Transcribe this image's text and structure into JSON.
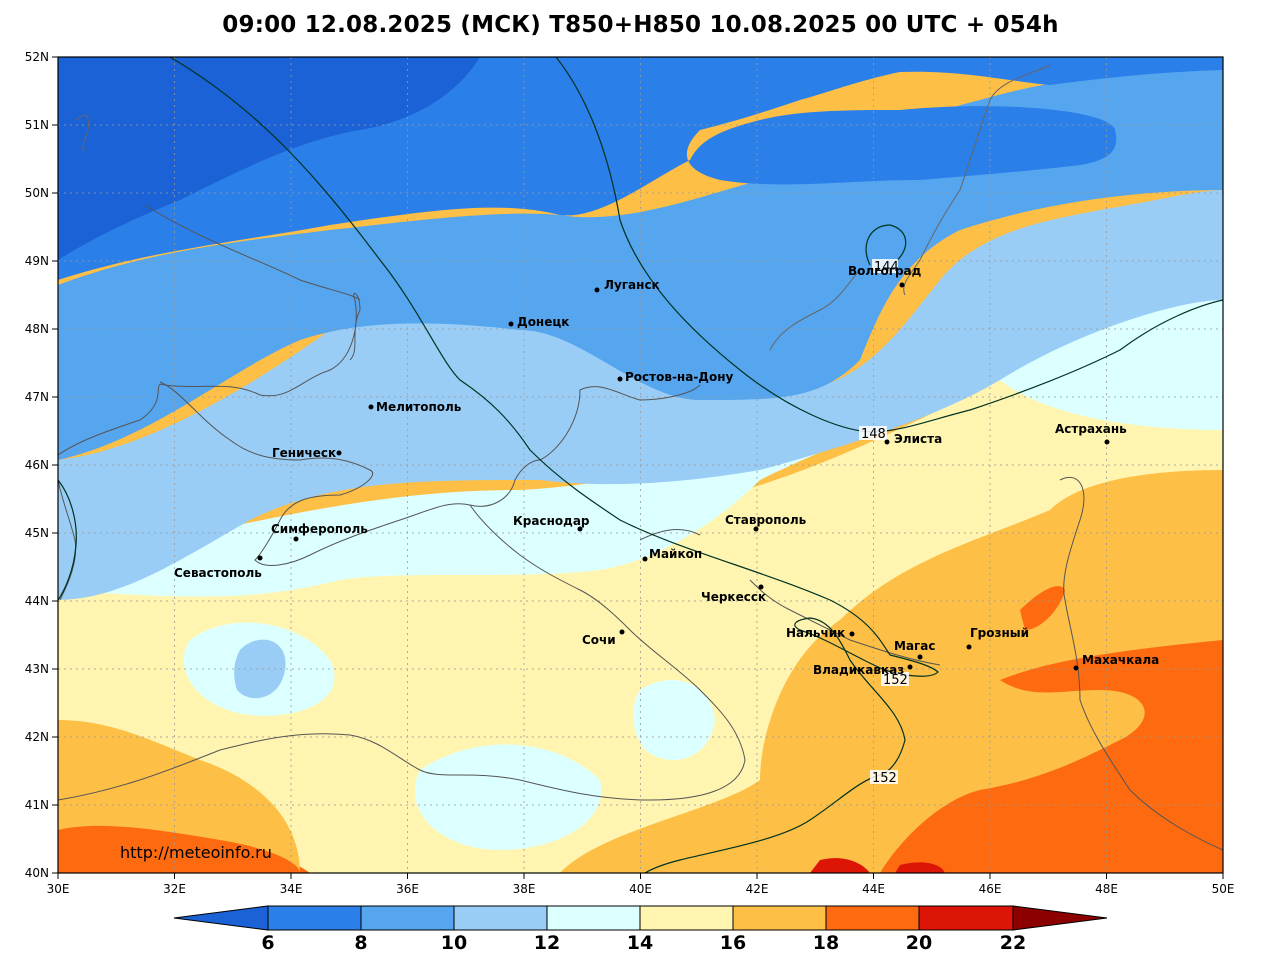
{
  "title": "09:00 12.08.2025 (МСК) T850+H850 10.08.2025 00 UTC + 054h",
  "watermark": "http://meteoinfo.ru",
  "axes": {
    "lon_ticks": [
      "30E",
      "32E",
      "34E",
      "36E",
      "38E",
      "40E",
      "42E",
      "44E",
      "46E",
      "48E",
      "50E"
    ],
    "lat_ticks": [
      "40N",
      "41N",
      "42N",
      "43N",
      "44N",
      "45N",
      "46N",
      "47N",
      "48N",
      "49N",
      "50N",
      "51N",
      "52N"
    ]
  },
  "colorbar": {
    "labels": [
      "6",
      "8",
      "10",
      "12",
      "14",
      "16",
      "18",
      "20",
      "22"
    ],
    "colors": [
      "#1a62d6",
      "#2b7fe8",
      "#55a5ef",
      "#99cdf6",
      "#dcffff",
      "#fff5b0",
      "#fdbf45",
      "#fd6a10",
      "#dd1507",
      "#8d0000"
    ]
  },
  "isolines": {
    "l144": "144",
    "l148": "148",
    "l152a": "152",
    "l152b": "152"
  },
  "cities": {
    "volgograd": "Волгоград",
    "lugansk": "Луганск",
    "donetsk": "Донецк",
    "rostov": "Ростов-на-Дону",
    "melitopol": "Мелитополь",
    "genichesk": "Геническ",
    "elista": "Элиста",
    "astrakhan": "Астрахань",
    "simferopol": "Симферополь",
    "krasnodar": "Краснодар",
    "stavropol": "Ставрополь",
    "maikop": "Майкоп",
    "sevastopol": "Севастополь",
    "cherkessk": "Черкесск",
    "nalchik": "Нальчик",
    "magas": "Магас",
    "grozny": "Грозный",
    "sochi": "Сочи",
    "vladikavkaz": "Владикавказ",
    "makhachkala": "Махачкала"
  }
}
